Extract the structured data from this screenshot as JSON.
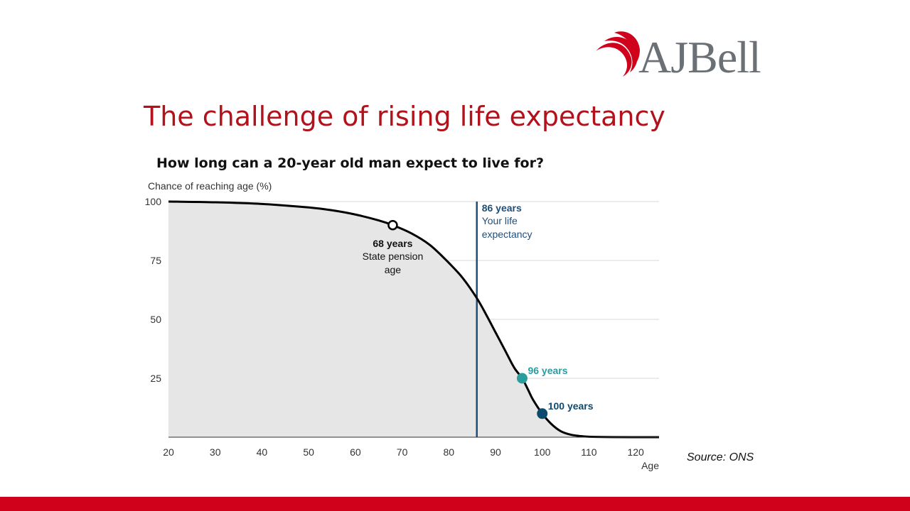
{
  "brand": {
    "name": "AJBell",
    "logo_icon": "swoosh-icon",
    "colors": {
      "red": "#d0021b",
      "title_red": "#b1121c",
      "grey": "#6b7077"
    }
  },
  "slide": {
    "title": "The challenge of rising life expectancy",
    "source": "Source: ONS"
  },
  "chart_data": {
    "type": "area",
    "title": "How long can a 20-year old man expect to live for?",
    "ylabel": "Chance of reaching age (%)",
    "xlabel": "Age",
    "xlim": [
      20,
      125
    ],
    "ylim": [
      0,
      100
    ],
    "xticks": [
      20,
      30,
      40,
      50,
      60,
      70,
      80,
      90,
      100,
      110,
      120
    ],
    "yticks": [
      25,
      50,
      75,
      100
    ],
    "grid": "horizontal",
    "series": [
      {
        "x": [
          20,
          30,
          40,
          50,
          55,
          60,
          65,
          68,
          72,
          76,
          80,
          83,
          86,
          88,
          90,
          92,
          94,
          95.7,
          97,
          98,
          100,
          102,
          104,
          106,
          108,
          110,
          115,
          120,
          125
        ],
        "y": [
          100,
          99.7,
          99,
          97.5,
          96.3,
          94.5,
          92,
          90,
          86.5,
          81.5,
          74,
          67.5,
          59,
          52,
          44.5,
          37,
          29.5,
          25,
          20,
          16,
          10,
          5.5,
          2.5,
          1.1,
          0.5,
          0.2,
          0.05,
          0,
          0
        ],
        "color": "#000000",
        "fill": "#e6e6e6"
      }
    ],
    "reference_lines": [
      {
        "axis": "x",
        "value": 86,
        "color": "#1f4e79",
        "label_bold": "86 years",
        "label_lines": [
          "Your life",
          "expectancy"
        ]
      }
    ],
    "markers": [
      {
        "x": 68,
        "y": 90,
        "style": "hollow",
        "color": "#000000",
        "label_bold": "68 years",
        "label_lines": [
          "State pension",
          "age"
        ],
        "label_color": "#111111"
      },
      {
        "x": 95.7,
        "y": 25,
        "style": "filled",
        "color": "#2a9d9f",
        "label_bold": "96 years",
        "label_lines": [],
        "label_color": "#2a9d9f"
      },
      {
        "x": 100,
        "y": 10,
        "style": "filled",
        "color": "#0e4a6e",
        "label_bold": "100 years",
        "label_lines": [],
        "label_color": "#0e4a6e"
      }
    ]
  }
}
